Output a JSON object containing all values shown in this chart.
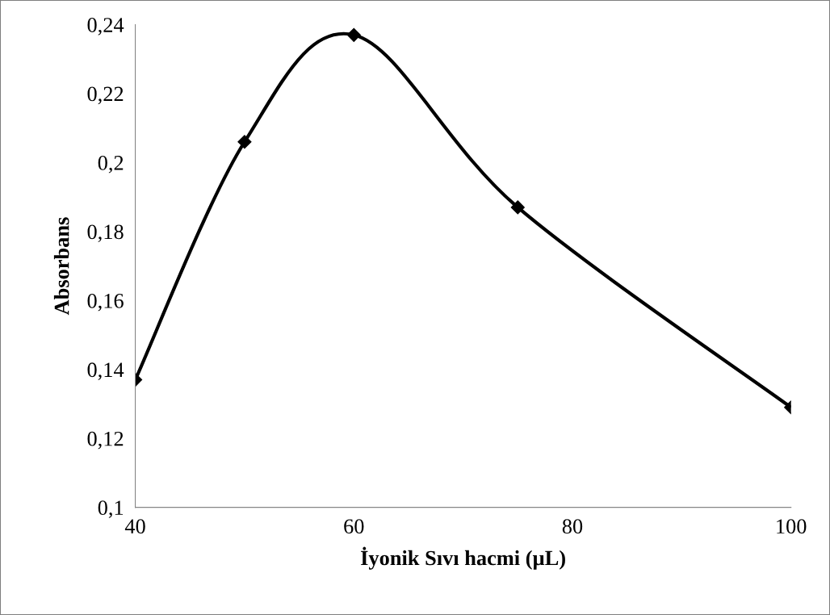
{
  "chart_data": {
    "type": "line",
    "xlabel": "İyonik Sıvı hacmi (µL)",
    "ylabel": "Absorbans",
    "x": [
      40,
      50,
      60,
      75,
      100
    ],
    "series": [
      {
        "color": "#000000",
        "values": [
          0.137,
          0.206,
          0.237,
          0.187,
          0.129
        ]
      }
    ],
    "marker": "diamond",
    "line_style": "solid",
    "grid": false,
    "legend": false,
    "xlim": [
      40,
      100
    ],
    "xticks": [
      40,
      60,
      80,
      100
    ],
    "ylim": [
      0.1,
      0.24
    ],
    "yticks": [
      {
        "value": 0.1,
        "label": "0,1"
      },
      {
        "value": 0.12,
        "label": "0,12"
      },
      {
        "value": 0.14,
        "label": "0,14"
      },
      {
        "value": 0.16,
        "label": "0,16"
      },
      {
        "value": 0.18,
        "label": "0,18"
      },
      {
        "value": 0.2,
        "label": "0,2"
      },
      {
        "value": 0.22,
        "label": "0,22"
      },
      {
        "value": 0.24,
        "label": "0,24"
      }
    ]
  }
}
